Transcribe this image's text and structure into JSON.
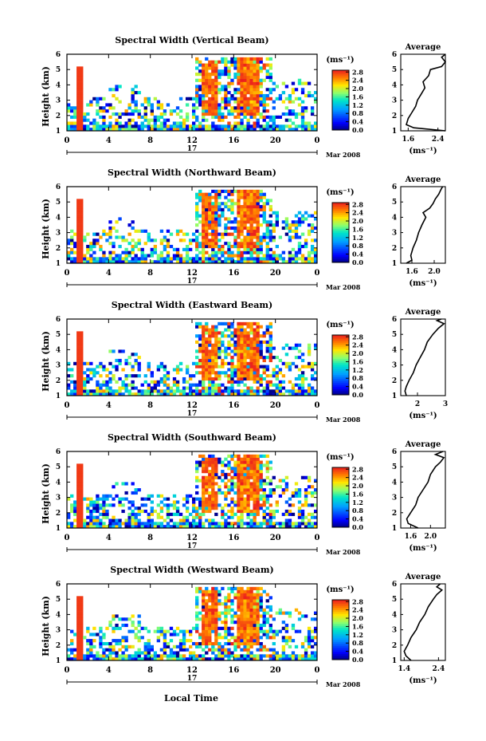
{
  "figure": {
    "xlabel": "Local Time",
    "date_label": "Mar 2008",
    "day_label": "17",
    "time_tick_labels": [
      "0",
      "4",
      "8",
      "12",
      "16",
      "20",
      "0"
    ],
    "height_ylabel": "Height (km)",
    "height_tick_labels": [
      "1",
      "2",
      "3",
      "4",
      "5",
      "6"
    ],
    "colorbar_unit": "(ms⁻¹)",
    "colorbar_tick_labels": [
      "0.0",
      "0.4",
      "0.8",
      "1.2",
      "1.6",
      "2.0",
      "2.4",
      "2.8"
    ],
    "profile_title": "Average",
    "profile_xlabel": "(ms⁻¹)"
  },
  "chart_data": [
    {
      "type": "heatmap",
      "title": "Spectral Width (Vertical Beam)",
      "xlabel": "Local Time",
      "ylabel": "Height (km)",
      "xlim": [
        0,
        24
      ],
      "ylim": [
        1,
        6
      ],
      "colorbar_range": [
        0,
        2.8
      ],
      "colorbar_unit": "ms⁻¹",
      "profile": {
        "title": "Average",
        "xlabel": "(ms⁻¹)",
        "xticks": [
          "1.6",
          "2.4"
        ],
        "xlim": [
          1.4,
          2.6
        ],
        "ylim": [
          1,
          6
        ],
        "height": [
          1.0,
          1.2,
          1.4,
          1.8,
          2.2,
          2.6,
          3.0,
          3.4,
          3.8,
          4.2,
          4.6,
          5.0,
          5.2,
          5.5,
          5.8,
          6.0
        ],
        "value": [
          2.6,
          1.75,
          1.55,
          1.6,
          1.7,
          1.8,
          1.85,
          1.95,
          2.05,
          2.0,
          2.15,
          2.2,
          2.5,
          2.6,
          2.5,
          2.6
        ]
      }
    },
    {
      "type": "heatmap",
      "title": "Spectral Width (Northward Beam)",
      "xlabel": "Local Time",
      "ylabel": "Height (km)",
      "xlim": [
        0,
        24
      ],
      "ylim": [
        1,
        6
      ],
      "colorbar_range": [
        0,
        2.8
      ],
      "colorbar_unit": "ms⁻¹",
      "profile": {
        "title": "Average",
        "xlabel": "(ms⁻¹)",
        "xticks": [
          "1.6",
          "2.0"
        ],
        "xlim": [
          1.4,
          2.2
        ],
        "ylim": [
          1,
          6
        ],
        "height": [
          1.0,
          1.2,
          1.5,
          2.0,
          2.5,
          3.0,
          3.5,
          4.0,
          4.3,
          4.6,
          4.9,
          5.2,
          5.5,
          5.8,
          6.0
        ],
        "value": [
          1.5,
          1.6,
          1.58,
          1.62,
          1.68,
          1.72,
          1.78,
          1.85,
          1.8,
          1.92,
          1.98,
          2.02,
          2.08,
          2.12,
          2.15
        ]
      }
    },
    {
      "type": "heatmap",
      "title": "Spectral Width (Eastward Beam)",
      "xlabel": "Local Time",
      "ylabel": "Height (km)",
      "xlim": [
        0,
        24
      ],
      "ylim": [
        1,
        6
      ],
      "colorbar_range": [
        0,
        2.8
      ],
      "colorbar_unit": "ms⁻¹",
      "profile": {
        "title": "Average",
        "xlabel": "(ms⁻¹)",
        "xticks": [
          "2",
          "3"
        ],
        "xlim": [
          1.4,
          3.0
        ],
        "ylim": [
          1,
          6
        ],
        "height": [
          1.0,
          1.3,
          1.6,
          2.0,
          2.5,
          3.0,
          3.5,
          4.0,
          4.5,
          5.0,
          5.4,
          5.7,
          5.9,
          6.0
        ],
        "value": [
          1.6,
          1.55,
          1.6,
          1.7,
          1.85,
          1.95,
          2.1,
          2.25,
          2.35,
          2.55,
          2.75,
          2.95,
          2.7,
          2.85
        ]
      }
    },
    {
      "type": "heatmap",
      "title": "Spectral Width (Southward Beam)",
      "xlabel": "Local Time",
      "ylabel": "Height (km)",
      "xlim": [
        0,
        24
      ],
      "ylim": [
        1,
        6
      ],
      "colorbar_range": [
        0,
        2.8
      ],
      "colorbar_unit": "ms⁻¹",
      "profile": {
        "title": "Average",
        "xlabel": "(ms⁻¹)",
        "xticks": [
          "1.6",
          "2.0"
        ],
        "xlim": [
          1.4,
          2.3
        ],
        "ylim": [
          1,
          6
        ],
        "height": [
          1.0,
          1.3,
          1.6,
          2.0,
          2.5,
          3.0,
          3.5,
          4.0,
          4.5,
          5.0,
          5.3,
          5.6,
          5.8,
          6.0
        ],
        "value": [
          1.75,
          1.55,
          1.52,
          1.6,
          1.7,
          1.75,
          1.85,
          1.95,
          2.0,
          2.1,
          2.2,
          2.27,
          2.1,
          2.25
        ]
      }
    },
    {
      "type": "heatmap",
      "title": "Spectral Width (Westward Beam)",
      "xlabel": "Local Time",
      "ylabel": "Height (km)",
      "xlim": [
        0,
        24
      ],
      "ylim": [
        1,
        6
      ],
      "colorbar_range": [
        0,
        2.8
      ],
      "colorbar_unit": "ms⁻¹",
      "profile": {
        "title": "Average",
        "xlabel": "(ms⁻¹)",
        "xticks": [
          "1.4",
          "2.4"
        ],
        "xlim": [
          1.3,
          2.6
        ],
        "ylim": [
          1,
          6
        ],
        "height": [
          1.0,
          1.3,
          1.6,
          2.0,
          2.5,
          3.0,
          3.5,
          4.0,
          4.5,
          5.0,
          5.3,
          5.6,
          5.8,
          6.0
        ],
        "value": [
          1.6,
          1.45,
          1.4,
          1.5,
          1.6,
          1.75,
          1.85,
          2.0,
          2.1,
          2.25,
          2.35,
          2.5,
          2.35,
          2.45
        ]
      }
    }
  ]
}
